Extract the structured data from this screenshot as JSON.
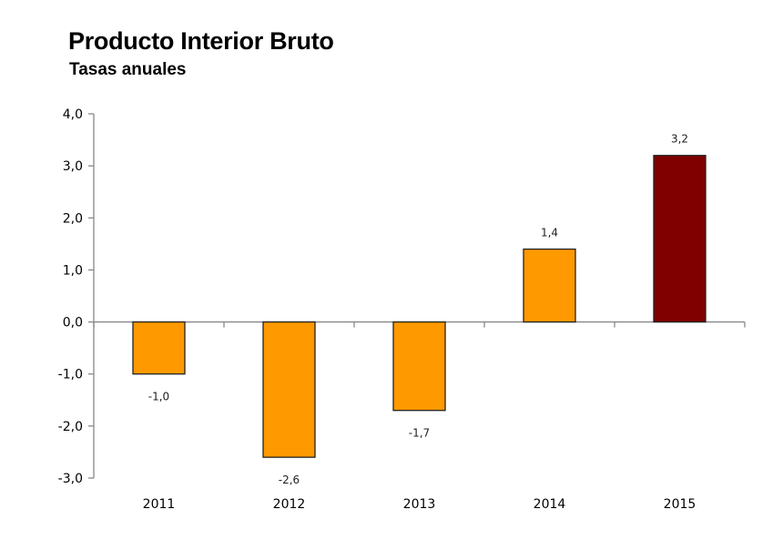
{
  "chart_data": {
    "type": "bar",
    "title": "Producto Interior Bruto",
    "subtitle": "Tasas anuales",
    "categories": [
      "2011",
      "2012",
      "2013",
      "2014",
      "2015"
    ],
    "values": [
      -1.0,
      -2.6,
      -1.7,
      1.4,
      3.2
    ],
    "data_labels": [
      "-1,0",
      "-2,6",
      "-1,7",
      "1,4",
      "3,2"
    ],
    "bar_colors": [
      "#FF9900",
      "#FF9900",
      "#FF9900",
      "#FF9900",
      "#800000"
    ],
    "ylim": [
      -3,
      4
    ],
    "yticks": [
      4,
      3,
      2,
      1,
      0,
      -1,
      -2,
      -3
    ],
    "ytick_labels": [
      "4,0",
      "3,0",
      "2,0",
      "1,0",
      "0,0",
      "-1,0",
      "-2,0",
      "-3,0"
    ],
    "xlabel": "",
    "ylabel": "",
    "grid": false,
    "legend": "none"
  }
}
